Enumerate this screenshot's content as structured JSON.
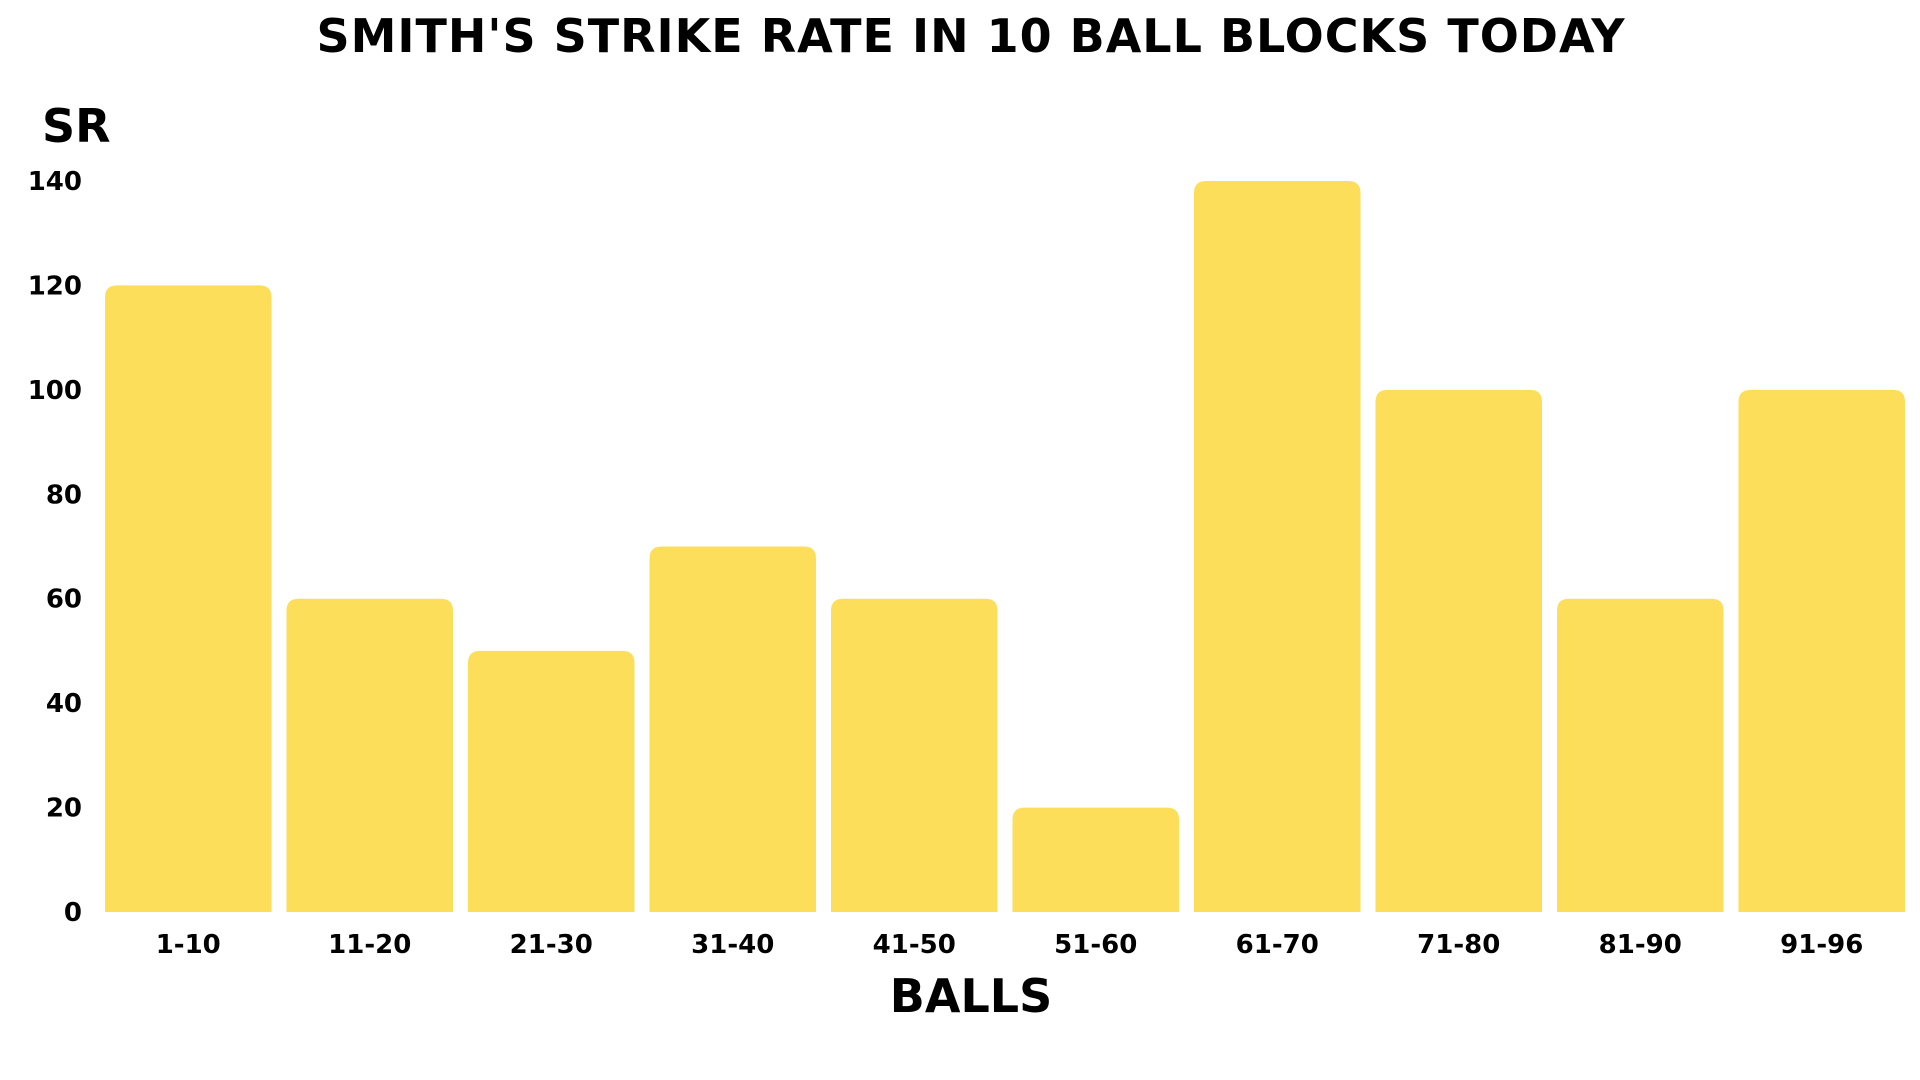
{
  "chart_data": {
    "type": "bar",
    "title": "SMITH'S STRIKE RATE IN 10 BALL BLOCKS TODAY",
    "xlabel": "BALLS",
    "ylabel": "SR",
    "categories": [
      "1-10",
      "11-20",
      "21-30",
      "31-40",
      "41-50",
      "51-60",
      "61-70",
      "71-80",
      "81-90",
      "91-96"
    ],
    "values": [
      120,
      60,
      50,
      70,
      60,
      20,
      140,
      100,
      60,
      100
    ],
    "ylim": [
      0,
      140
    ],
    "yticks": [
      0,
      20,
      40,
      60,
      80,
      100,
      120,
      140
    ],
    "grid": false,
    "legend": "none",
    "bar_color": "#FDDE5B",
    "text_color": "#000000"
  }
}
